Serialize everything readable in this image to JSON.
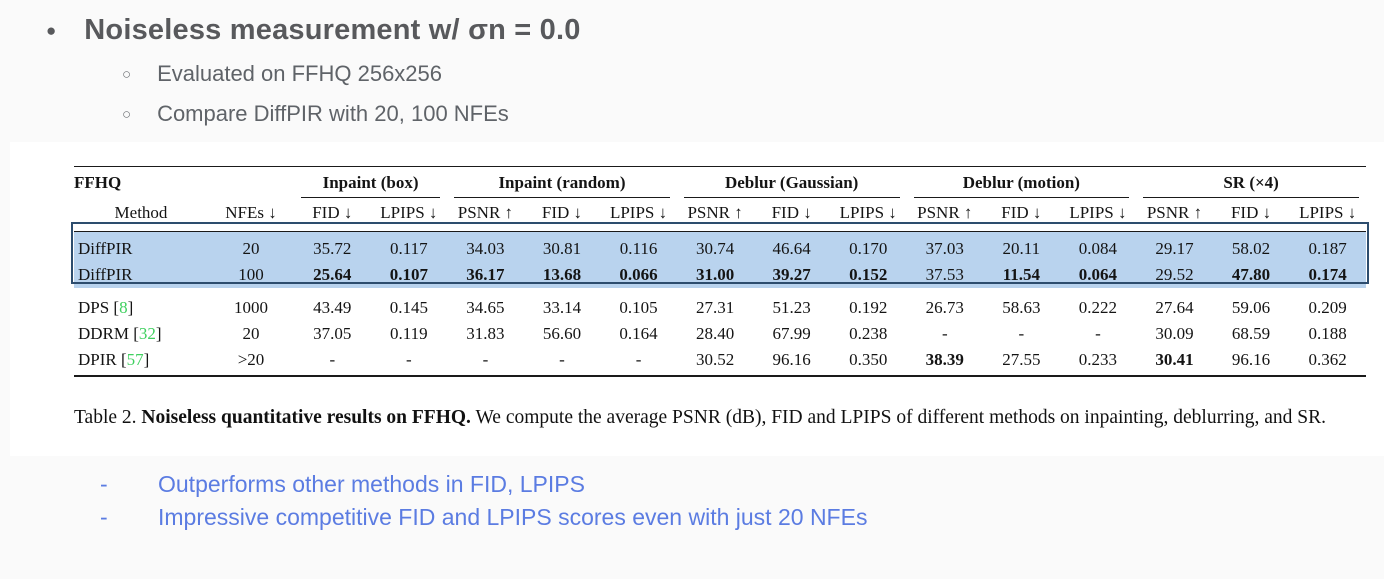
{
  "slide": {
    "bullet_glyph": "●",
    "sub_bullet_glyph": "○",
    "title": "Noiseless measurement w/ σn = 0.0",
    "sub_bullets": [
      "Evaluated on FFHQ 256x256",
      "Compare DiffPIR with 20, 100 NFEs"
    ],
    "note_dash": "-",
    "notes": [
      "Outperforms other methods in FID, LPIPS",
      "Impressive competitive FID and LPIPS scores even with just 20 NFEs"
    ],
    "colors": {
      "background": "#fafafa",
      "panel": "#ffffff",
      "title_gray": "#58595c",
      "accent_blue": "#5b7ce2",
      "cite_green": "#3fd05f",
      "highlight_fill": "#b9d3ee",
      "highlight_border": "#2d4d6e"
    }
  },
  "table": {
    "id_header": {
      "col1_top": "FFHQ",
      "col1_bottom": "Method",
      "col2": "NFEs ↓"
    },
    "groups": [
      {
        "label": "Inpaint (box)",
        "cols": 2
      },
      {
        "label": "Inpaint (random)",
        "cols": 3
      },
      {
        "label": "Deblur (Gaussian)",
        "cols": 3
      },
      {
        "label": "Deblur (motion)",
        "cols": 3
      },
      {
        "label": "SR (×4)",
        "cols": 3
      }
    ],
    "metric_headers": [
      "FID ↓",
      "LPIPS ↓",
      "PSNR ↑",
      "FID ↓",
      "LPIPS ↓",
      "PSNR ↑",
      "FID ↓",
      "LPIPS ↓",
      "PSNR ↑",
      "FID ↓",
      "LPIPS ↓",
      "PSNR ↑",
      "FID ↓",
      "LPIPS ↓"
    ],
    "rows": [
      {
        "m": "DiffPIR",
        "c": "",
        "s": "",
        "nfes": "20",
        "highlight": true,
        "bold_indices": [],
        "v": [
          "35.72",
          "0.117",
          "34.03",
          "30.81",
          "0.116",
          "30.74",
          "46.64",
          "0.170",
          "37.03",
          "20.11",
          "0.084",
          "29.17",
          "58.02",
          "0.187"
        ]
      },
      {
        "m": "DiffPIR",
        "c": "",
        "s": "",
        "nfes": "100",
        "highlight": true,
        "bold_indices": [
          0,
          1,
          2,
          3,
          4,
          5,
          6,
          7,
          9,
          10,
          12,
          13
        ],
        "v": [
          "25.64",
          "0.107",
          "36.17",
          "13.68",
          "0.066",
          "31.00",
          "39.27",
          "0.152",
          "37.53",
          "11.54",
          "0.064",
          "29.52",
          "47.80",
          "0.174"
        ]
      },
      {
        "m": "DPS [",
        "c": "8",
        "s": "]",
        "nfes": "1000",
        "highlight": false,
        "bold_indices": [],
        "v": [
          "43.49",
          "0.145",
          "34.65",
          "33.14",
          "0.105",
          "27.31",
          "51.23",
          "0.192",
          "26.73",
          "58.63",
          "0.222",
          "27.64",
          "59.06",
          "0.209"
        ]
      },
      {
        "m": "DDRM [",
        "c": "32",
        "s": "]",
        "nfes": "20",
        "highlight": false,
        "bold_indices": [],
        "v": [
          "37.05",
          "0.119",
          "31.83",
          "56.60",
          "0.164",
          "28.40",
          "67.99",
          "0.238",
          "-",
          "-",
          "-",
          "30.09",
          "68.59",
          "0.188"
        ]
      },
      {
        "m": "DPIR [",
        "c": "57",
        "s": "]",
        "nfes": ">20",
        "highlight": false,
        "bold_indices": [
          8,
          11
        ],
        "v": [
          "-",
          "-",
          "-",
          "-",
          "-",
          "30.52",
          "96.16",
          "0.350",
          "38.39",
          "27.55",
          "0.233",
          "30.41",
          "96.16",
          "0.362"
        ]
      }
    ]
  },
  "caption": {
    "prefix": "Table 2. ",
    "bold": "Noiseless quantitative results on FFHQ.",
    "rest": " We compute the average PSNR (dB), FID and LPIPS of different methods on inpainting, deblurring, and SR."
  }
}
